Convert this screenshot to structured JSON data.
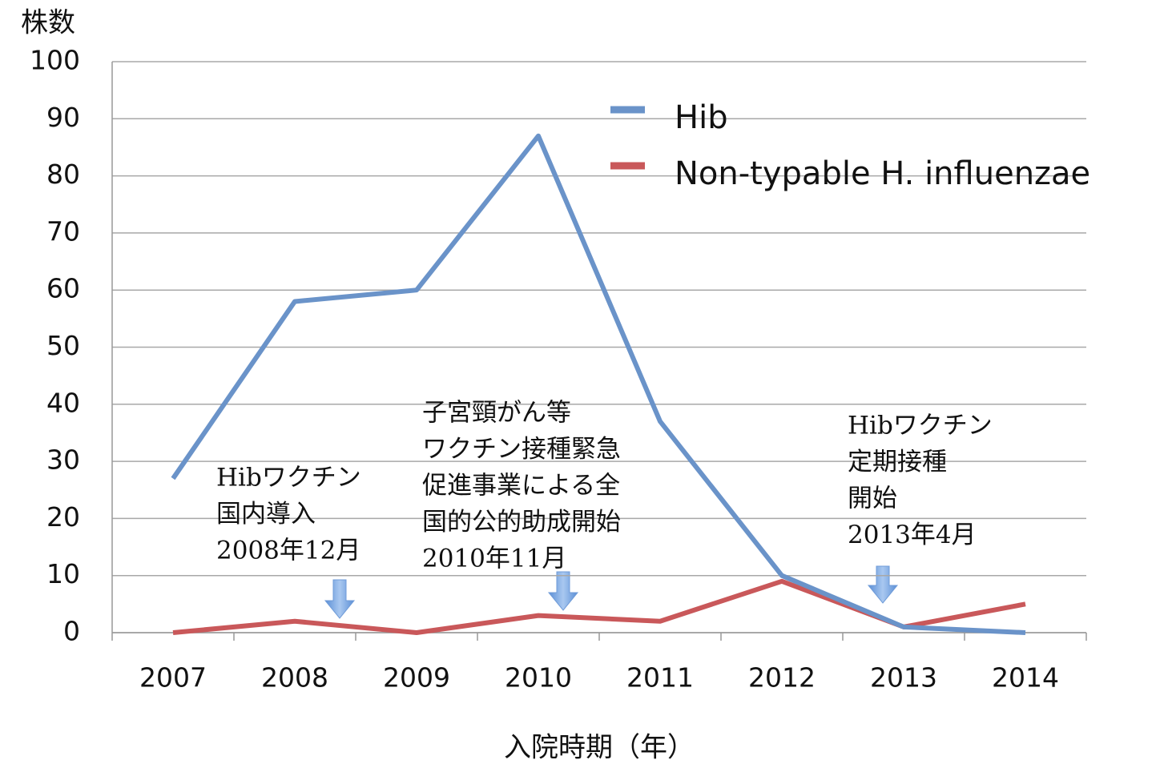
{
  "chart_data": {
    "type": "line",
    "y_axis_label": "株数",
    "x_axis_label": "入院時期（年）",
    "categories": [
      "2007",
      "2008",
      "2009",
      "2010",
      "2011",
      "2012",
      "2013",
      "2014"
    ],
    "series": [
      {
        "name": "Hib",
        "color": "#6a93c9",
        "values": [
          27,
          58,
          60,
          87,
          37,
          10,
          1,
          0
        ]
      },
      {
        "name": "Non-typable H. influenzae",
        "color": "#c9585a",
        "values": [
          0,
          2,
          0,
          3,
          2,
          9,
          1,
          5
        ]
      }
    ],
    "ylim": [
      0,
      100
    ],
    "yticks": [
      0,
      10,
      20,
      30,
      40,
      50,
      60,
      70,
      80,
      90,
      100
    ],
    "grid": true,
    "legend": "upper right",
    "annotations": [
      {
        "lines": [
          "Hibワクチン",
          "国内導入",
          "2008年12月"
        ]
      },
      {
        "lines": [
          "子宮頸がん等",
          "ワクチン接種緊急",
          "促進事業による全",
          "国的公的助成開始",
          "2010年11月"
        ]
      },
      {
        "lines": [
          "Hibワクチン",
          "定期接種",
          "開始",
          "2013年4月"
        ]
      }
    ]
  }
}
